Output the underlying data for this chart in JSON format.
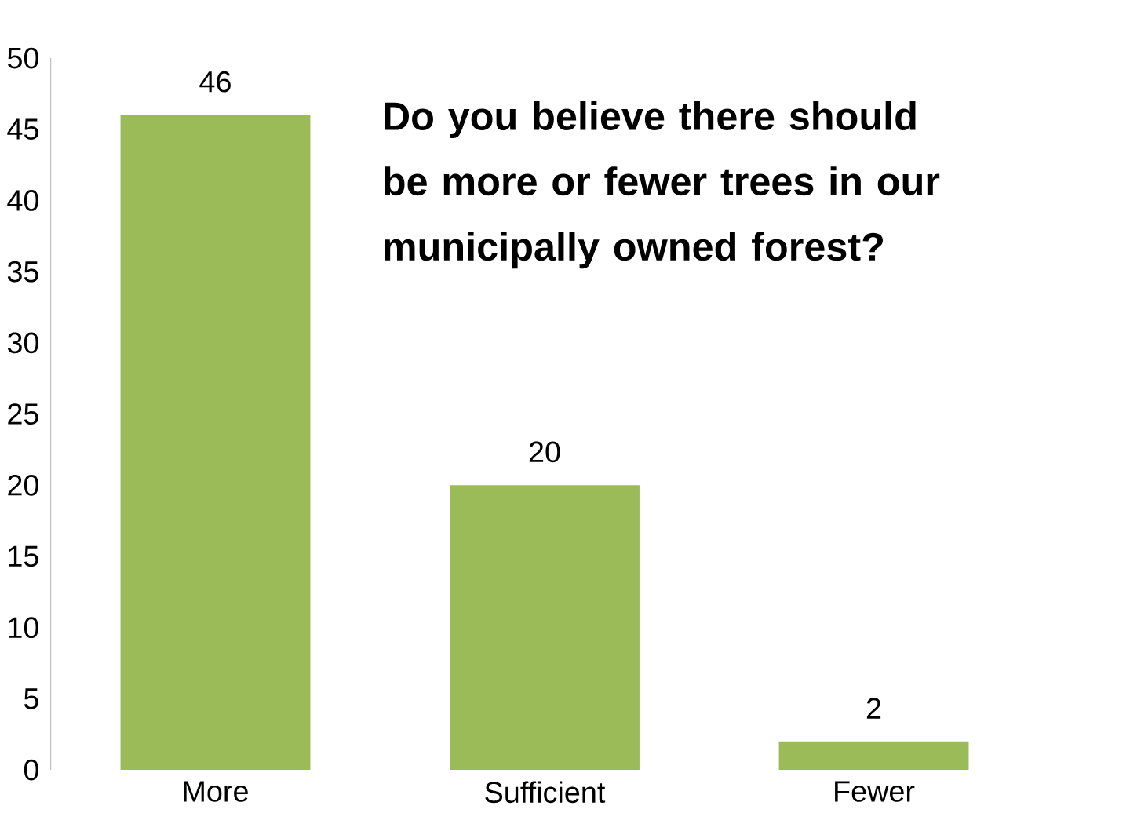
{
  "chart_data": {
    "type": "bar",
    "title": "Do you believe there should be more or fewer trees in our municipally owned forest?",
    "categories": [
      "More",
      "Sufficient",
      "Fewer"
    ],
    "values": [
      46,
      20,
      2
    ],
    "color": "#9bbb59",
    "ylim": [
      0,
      50
    ],
    "yticks": [
      0,
      5,
      10,
      15,
      20,
      25,
      30,
      35,
      40,
      45,
      50
    ],
    "data_labels": true,
    "grid": false
  }
}
